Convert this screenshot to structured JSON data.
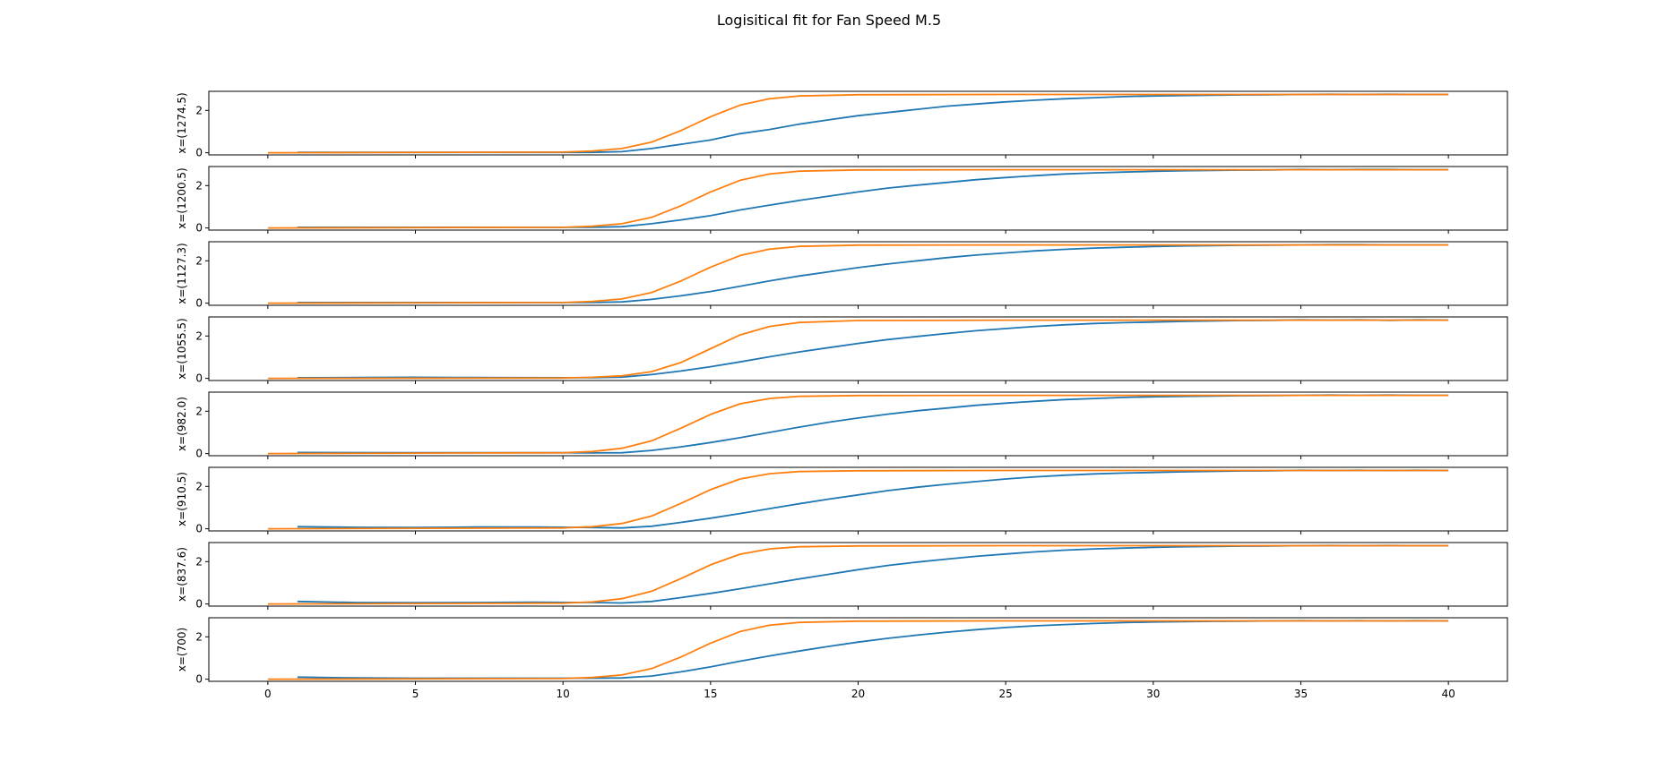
{
  "figure": {
    "title": "Logisitical fit for Fan Speed M.5"
  },
  "chart_data": {
    "type": "line",
    "title": "Logisitical fit for Fan Speed M.5",
    "xlim": [
      -2,
      42
    ],
    "ylim": [
      -0.1,
      2.9
    ],
    "xticks": [
      0,
      5,
      10,
      15,
      20,
      25,
      30,
      35,
      40
    ],
    "yticks": [
      0,
      2
    ],
    "grid": false,
    "legend": "none",
    "colors": {
      "measured": "#1f77b4",
      "fit": "#ff7f0e"
    },
    "panels": [
      {
        "ylabel": "x=(1274.5)",
        "series": [
          {
            "key": "measured",
            "x": [
              1,
              5,
              10,
              11,
              12,
              13,
              14,
              15,
              16,
              17,
              18,
              19,
              20,
              21,
              22,
              23,
              24,
              25,
              26,
              27,
              28,
              29,
              30,
              31,
              32,
              33,
              34,
              35,
              36,
              37,
              38,
              39,
              40
            ],
            "y": [
              0.02,
              0.02,
              0.02,
              0.02,
              0.05,
              0.2,
              0.4,
              0.6,
              0.9,
              1.1,
              1.35,
              1.55,
              1.75,
              1.9,
              2.05,
              2.2,
              2.3,
              2.4,
              2.48,
              2.55,
              2.6,
              2.65,
              2.68,
              2.7,
              2.72,
              2.73,
              2.74,
              2.75,
              2.76,
              2.75,
              2.76,
              2.75,
              2.75
            ]
          },
          {
            "key": "fit",
            "x": [
              0,
              10,
              11,
              12,
              13,
              14,
              15,
              16,
              17,
              18,
              20,
              25,
              30,
              35,
              40
            ],
            "y": [
              0.0,
              0.03,
              0.08,
              0.2,
              0.5,
              1.05,
              1.7,
              2.25,
              2.55,
              2.68,
              2.74,
              2.75,
              2.75,
              2.75,
              2.75
            ]
          }
        ]
      },
      {
        "ylabel": "x=(1200.5)",
        "series": [
          {
            "key": "measured",
            "x": [
              1,
              5,
              10,
              11,
              12,
              13,
              14,
              15,
              16,
              17,
              18,
              19,
              20,
              21,
              22,
              23,
              24,
              25,
              26,
              27,
              28,
              29,
              30,
              31,
              32,
              33,
              34,
              35,
              36,
              37,
              38,
              39,
              40
            ],
            "y": [
              0.03,
              0.03,
              0.03,
              0.03,
              0.06,
              0.2,
              0.38,
              0.58,
              0.85,
              1.08,
              1.3,
              1.5,
              1.7,
              1.88,
              2.02,
              2.15,
              2.28,
              2.38,
              2.47,
              2.55,
              2.6,
              2.64,
              2.67,
              2.7,
              2.72,
              2.73,
              2.74,
              2.76,
              2.75,
              2.76,
              2.76,
              2.75,
              2.75
            ]
          },
          {
            "key": "fit",
            "x": [
              0,
              10,
              11,
              12,
              13,
              14,
              15,
              16,
              17,
              18,
              20,
              25,
              30,
              35,
              40
            ],
            "y": [
              0.0,
              0.03,
              0.08,
              0.2,
              0.5,
              1.05,
              1.7,
              2.25,
              2.55,
              2.68,
              2.74,
              2.75,
              2.75,
              2.75,
              2.75
            ]
          }
        ]
      },
      {
        "ylabel": "x=(1127.3)",
        "series": [
          {
            "key": "measured",
            "x": [
              1,
              5,
              10,
              11,
              12,
              13,
              14,
              15,
              16,
              17,
              18,
              19,
              20,
              21,
              22,
              23,
              24,
              25,
              26,
              27,
              28,
              29,
              30,
              31,
              32,
              33,
              34,
              35,
              36,
              37,
              38,
              39,
              40
            ],
            "y": [
              0.03,
              0.03,
              0.03,
              0.03,
              0.06,
              0.18,
              0.35,
              0.55,
              0.8,
              1.05,
              1.28,
              1.48,
              1.68,
              1.85,
              2.0,
              2.15,
              2.27,
              2.37,
              2.47,
              2.54,
              2.6,
              2.64,
              2.67,
              2.7,
              2.72,
              2.73,
              2.74,
              2.75,
              2.76,
              2.76,
              2.75,
              2.75,
              2.75
            ]
          },
          {
            "key": "fit",
            "x": [
              0,
              10,
              11,
              12,
              13,
              14,
              15,
              16,
              17,
              18,
              20,
              25,
              30,
              35,
              40
            ],
            "y": [
              0.0,
              0.03,
              0.08,
              0.2,
              0.5,
              1.05,
              1.7,
              2.25,
              2.55,
              2.68,
              2.74,
              2.75,
              2.75,
              2.75,
              2.75
            ]
          }
        ]
      },
      {
        "ylabel": "x=(1055.5)",
        "series": [
          {
            "key": "measured",
            "x": [
              1,
              3,
              5,
              7,
              10,
              11,
              12,
              13,
              14,
              15,
              16,
              17,
              18,
              19,
              20,
              21,
              22,
              23,
              24,
              25,
              26,
              27,
              28,
              29,
              30,
              31,
              32,
              33,
              34,
              35,
              36,
              37,
              38,
              39,
              40
            ],
            "y": [
              0.03,
              0.04,
              0.05,
              0.04,
              0.03,
              0.03,
              0.06,
              0.18,
              0.35,
              0.55,
              0.78,
              1.02,
              1.25,
              1.45,
              1.65,
              1.83,
              1.98,
              2.12,
              2.25,
              2.35,
              2.45,
              2.53,
              2.59,
              2.63,
              2.66,
              2.69,
              2.71,
              2.73,
              2.74,
              2.76,
              2.75,
              2.76,
              2.74,
              2.76,
              2.75
            ]
          },
          {
            "key": "fit",
            "x": [
              0,
              10,
              11,
              12,
              13,
              14,
              15,
              16,
              17,
              18,
              20,
              25,
              30,
              35,
              40
            ],
            "y": [
              0.0,
              0.02,
              0.05,
              0.12,
              0.32,
              0.75,
              1.4,
              2.05,
              2.45,
              2.64,
              2.73,
              2.75,
              2.75,
              2.75,
              2.75
            ]
          }
        ]
      },
      {
        "ylabel": "x=(982.0)",
        "series": [
          {
            "key": "measured",
            "x": [
              1,
              5,
              10,
              11,
              12,
              13,
              14,
              15,
              16,
              17,
              18,
              19,
              20,
              21,
              22,
              23,
              24,
              25,
              26,
              27,
              28,
              29,
              30,
              31,
              32,
              33,
              34,
              35,
              36,
              37,
              38,
              39,
              40
            ],
            "y": [
              0.05,
              0.04,
              0.04,
              0.03,
              0.04,
              0.15,
              0.32,
              0.52,
              0.75,
              1.0,
              1.25,
              1.48,
              1.68,
              1.86,
              2.02,
              2.15,
              2.28,
              2.38,
              2.47,
              2.55,
              2.6,
              2.65,
              2.68,
              2.7,
              2.72,
              2.73,
              2.74,
              2.75,
              2.76,
              2.75,
              2.76,
              2.75,
              2.75
            ]
          },
          {
            "key": "fit",
            "x": [
              0,
              10,
              11,
              12,
              13,
              14,
              15,
              16,
              17,
              18,
              20,
              25,
              30,
              35,
              40
            ],
            "y": [
              0.0,
              0.04,
              0.1,
              0.25,
              0.6,
              1.2,
              1.85,
              2.35,
              2.6,
              2.7,
              2.74,
              2.75,
              2.75,
              2.75,
              2.75
            ]
          }
        ]
      },
      {
        "ylabel": "x=(910.5)",
        "series": [
          {
            "key": "measured",
            "x": [
              1,
              3,
              5,
              7,
              9,
              11,
              12,
              13,
              14,
              15,
              16,
              17,
              18,
              19,
              20,
              21,
              22,
              23,
              24,
              25,
              26,
              27,
              28,
              29,
              30,
              31,
              32,
              33,
              34,
              35,
              36,
              37,
              38,
              39,
              40
            ],
            "y": [
              0.1,
              0.07,
              0.06,
              0.08,
              0.08,
              0.06,
              0.04,
              0.12,
              0.3,
              0.5,
              0.72,
              0.95,
              1.18,
              1.4,
              1.6,
              1.8,
              1.96,
              2.1,
              2.23,
              2.35,
              2.45,
              2.53,
              2.59,
              2.63,
              2.66,
              2.69,
              2.71,
              2.73,
              2.74,
              2.76,
              2.75,
              2.76,
              2.75,
              2.76,
              2.75
            ]
          },
          {
            "key": "fit",
            "x": [
              0,
              10,
              11,
              12,
              13,
              14,
              15,
              16,
              17,
              18,
              20,
              25,
              30,
              35,
              40
            ],
            "y": [
              0.0,
              0.04,
              0.1,
              0.25,
              0.6,
              1.2,
              1.85,
              2.35,
              2.6,
              2.7,
              2.74,
              2.75,
              2.75,
              2.75,
              2.75
            ]
          }
        ]
      },
      {
        "ylabel": "x=(837.6)",
        "series": [
          {
            "key": "measured",
            "x": [
              1,
              3,
              5,
              7,
              9,
              11,
              12,
              13,
              14,
              15,
              16,
              17,
              18,
              19,
              20,
              21,
              22,
              23,
              24,
              25,
              26,
              27,
              28,
              29,
              30,
              31,
              32,
              33,
              34,
              35,
              36,
              37,
              38,
              39,
              40
            ],
            "y": [
              0.12,
              0.07,
              0.06,
              0.07,
              0.08,
              0.07,
              0.05,
              0.12,
              0.3,
              0.5,
              0.72,
              0.95,
              1.18,
              1.4,
              1.62,
              1.82,
              1.98,
              2.12,
              2.25,
              2.36,
              2.46,
              2.54,
              2.6,
              2.64,
              2.67,
              2.7,
              2.72,
              2.73,
              2.74,
              2.75,
              2.76,
              2.75,
              2.76,
              2.75,
              2.75
            ]
          },
          {
            "key": "fit",
            "x": [
              0,
              10,
              11,
              12,
              13,
              14,
              15,
              16,
              17,
              18,
              20,
              25,
              30,
              35,
              40
            ],
            "y": [
              0.0,
              0.04,
              0.1,
              0.25,
              0.6,
              1.2,
              1.85,
              2.35,
              2.6,
              2.7,
              2.74,
              2.75,
              2.75,
              2.75,
              2.75
            ]
          }
        ]
      },
      {
        "ylabel": "x=(700)",
        "series": [
          {
            "key": "measured",
            "x": [
              1,
              3,
              5,
              7,
              9,
              11,
              12,
              13,
              14,
              15,
              16,
              17,
              18,
              19,
              20,
              21,
              22,
              23,
              24,
              25,
              26,
              27,
              28,
              29,
              30,
              31,
              32,
              33,
              34,
              35,
              36,
              37,
              38,
              39,
              40
            ],
            "y": [
              0.1,
              0.06,
              0.05,
              0.05,
              0.05,
              0.05,
              0.06,
              0.15,
              0.35,
              0.58,
              0.85,
              1.1,
              1.33,
              1.55,
              1.75,
              1.93,
              2.08,
              2.22,
              2.34,
              2.44,
              2.52,
              2.58,
              2.63,
              2.67,
              2.7,
              2.72,
              2.73,
              2.74,
              2.75,
              2.76,
              2.75,
              2.76,
              2.75,
              2.76,
              2.75
            ]
          },
          {
            "key": "fit",
            "x": [
              0,
              10,
              11,
              12,
              13,
              14,
              15,
              16,
              17,
              18,
              20,
              25,
              30,
              35,
              40
            ],
            "y": [
              0.0,
              0.03,
              0.08,
              0.2,
              0.5,
              1.05,
              1.7,
              2.25,
              2.55,
              2.68,
              2.74,
              2.75,
              2.75,
              2.75,
              2.75
            ]
          }
        ]
      }
    ]
  }
}
